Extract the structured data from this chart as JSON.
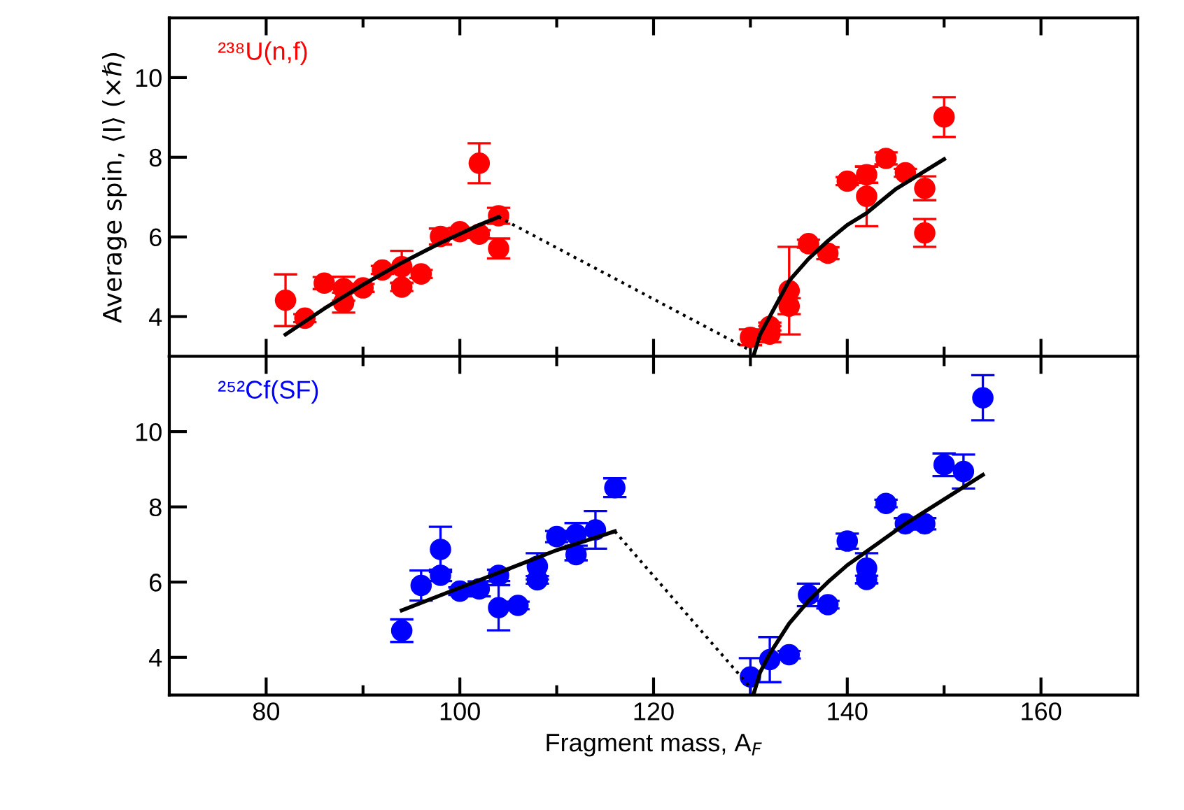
{
  "chart_data": [
    {
      "type": "scatter",
      "title": "²³⁸U(n,f)",
      "ylabel": "Average spin, ⟨I⟩ (×ℏ)",
      "tick_labels": "y",
      "xlim": [
        70,
        170
      ],
      "ylim": [
        3,
        11.5
      ],
      "xticks": [
        80,
        {
          "value": 90,
          "label": null
        },
        100,
        {
          "value": 110,
          "label": null
        },
        120,
        {
          "value": 130,
          "label": null
        },
        140,
        {
          "value": 150,
          "label": null
        },
        160
      ],
      "yticks": [
        4,
        6,
        8,
        10
      ],
      "series": [
        {
          "marker": "circle",
          "color": "#ff0000",
          "x": [
            82,
            84,
            86,
            88,
            88,
            90,
            92,
            94,
            94,
            96,
            98,
            100,
            102,
            102,
            104,
            104,
            130,
            132,
            132,
            134,
            134,
            136,
            138,
            140,
            142,
            142,
            144,
            146,
            148,
            148,
            150
          ],
          "values": [
            4.41,
            3.96,
            4.84,
            4.35,
            4.7,
            4.72,
            5.17,
            5.25,
            4.74,
            5.07,
            6.01,
            6.13,
            6.07,
            7.85,
            6.53,
            5.71,
            3.48,
            3.56,
            3.75,
            4.65,
            4.26,
            5.83,
            5.59,
            7.4,
            7.56,
            7.02,
            7.97,
            7.61,
            7.22,
            6.1,
            9.01
          ],
          "errors": [
            0.65,
            0.1,
            0.15,
            0.25,
            0.3,
            0.1,
            0.1,
            0.4,
            0.1,
            0.1,
            0.2,
            0.1,
            0.1,
            0.5,
            0.2,
            0.25,
            0.2,
            0.2,
            0.1,
            1.1,
            0.2,
            0.1,
            0.15,
            0.1,
            0.2,
            0.75,
            0.15,
            0.1,
            0.3,
            0.35,
            0.5
          ]
        },
        {
          "type": "line",
          "color": "#000000",
          "line_style": "solid",
          "x": [
            82,
            86,
            90,
            94,
            98,
            102,
            104
          ],
          "values": [
            3.55,
            4.2,
            4.8,
            5.35,
            5.85,
            6.3,
            6.5
          ]
        },
        {
          "type": "line",
          "color": "#000000",
          "line_style": "dotted",
          "x": [
            104,
            130
          ],
          "values": [
            6.5,
            3.15
          ]
        },
        {
          "type": "line",
          "color": "#000000",
          "line_style": "solid",
          "x": [
            130.3,
            131,
            132,
            134,
            136,
            138,
            140,
            142,
            145,
            148,
            150
          ],
          "values": [
            3.0,
            3.55,
            4.0,
            4.9,
            5.45,
            5.9,
            6.3,
            6.6,
            7.2,
            7.65,
            7.95
          ]
        }
      ]
    },
    {
      "type": "scatter",
      "title": "²⁵²Cf(SF)",
      "xlabel": "Fragment mass, A$_{F}$",
      "xlim": [
        70,
        170
      ],
      "ylim": [
        3,
        12
      ],
      "xticks": [
        80,
        {
          "value": 90,
          "label": null
        },
        100,
        {
          "value": 110,
          "label": null
        },
        120,
        {
          "value": 130,
          "label": null
        },
        140,
        {
          "value": 150,
          "label": null
        },
        160
      ],
      "yticks": [
        4,
        6,
        8,
        10
      ],
      "series": [
        {
          "marker": "circle",
          "color": "#0000ff",
          "x": [
            94,
            96,
            98,
            98,
            100,
            102,
            104,
            104,
            106,
            108,
            108,
            110,
            112,
            112,
            114,
            116,
            130,
            132,
            134,
            136,
            138,
            140,
            142,
            142,
            144,
            146,
            148,
            150,
            152,
            154
          ],
          "values": [
            4.71,
            5.91,
            6.87,
            6.18,
            5.76,
            5.82,
            6.18,
            5.32,
            5.38,
            6.42,
            6.06,
            7.21,
            7.27,
            6.73,
            7.39,
            8.51,
            3.48,
            3.94,
            4.07,
            5.66,
            5.4,
            7.09,
            6.37,
            6.07,
            8.09,
            7.55,
            7.55,
            9.12,
            8.94,
            10.9
          ],
          "errors": [
            0.3,
            0.4,
            0.6,
            0.15,
            0.1,
            0.2,
            0.15,
            0.6,
            0.1,
            0.35,
            0.1,
            0.15,
            0.3,
            0.15,
            0.5,
            0.25,
            0.5,
            0.6,
            0.1,
            0.3,
            0.1,
            0.2,
            0.4,
            0.1,
            0.1,
            0.15,
            0.15,
            0.3,
            0.45,
            0.6
          ]
        },
        {
          "type": "line",
          "color": "#000000",
          "line_style": "solid",
          "x": [
            94,
            100,
            105,
            110,
            116
          ],
          "values": [
            5.25,
            5.85,
            6.35,
            6.85,
            7.35
          ]
        },
        {
          "type": "line",
          "color": "#000000",
          "line_style": "dotted",
          "x": [
            116,
            130
          ],
          "values": [
            7.35,
            3.2
          ]
        },
        {
          "type": "line",
          "color": "#000000",
          "line_style": "solid",
          "x": [
            130.3,
            131,
            132,
            134,
            136,
            138,
            140,
            143,
            146,
            150,
            154
          ],
          "values": [
            3.0,
            3.6,
            4.1,
            4.9,
            5.5,
            6.0,
            6.45,
            7.0,
            7.55,
            8.2,
            8.85
          ]
        }
      ]
    }
  ]
}
